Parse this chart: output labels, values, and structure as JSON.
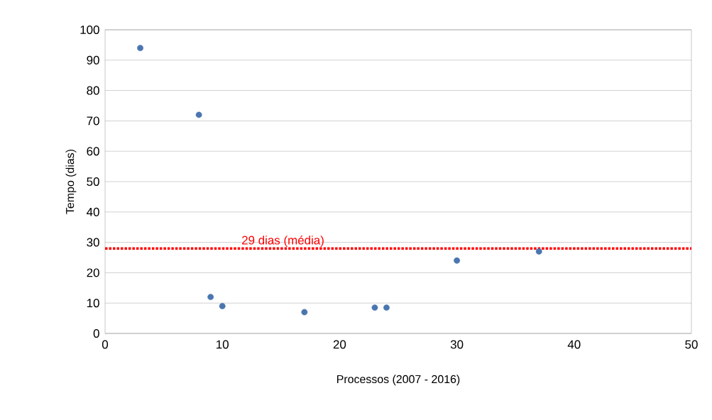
{
  "chart_data": {
    "type": "scatter",
    "xlabel": "Processos (2007 - 2016)",
    "ylabel": "Tempo (dias)",
    "x": [
      3,
      8,
      9,
      10,
      17,
      23,
      24,
      30,
      37
    ],
    "values": [
      94,
      72,
      12,
      9,
      7,
      8.5,
      8.5,
      24,
      27
    ],
    "color": "#4a76b0",
    "xlim": [
      0,
      50
    ],
    "xticks": [
      0,
      10,
      20,
      30,
      40,
      50
    ],
    "ylim": [
      0,
      100
    ],
    "yticks": [
      0,
      10,
      20,
      30,
      40,
      50,
      60,
      70,
      80,
      90,
      100
    ],
    "grid": "y",
    "ref_lines": [
      {
        "axis": "y",
        "value": 28,
        "label": "29 dias (média)",
        "color": "#ff0000",
        "line_style": "dotted"
      }
    ]
  }
}
